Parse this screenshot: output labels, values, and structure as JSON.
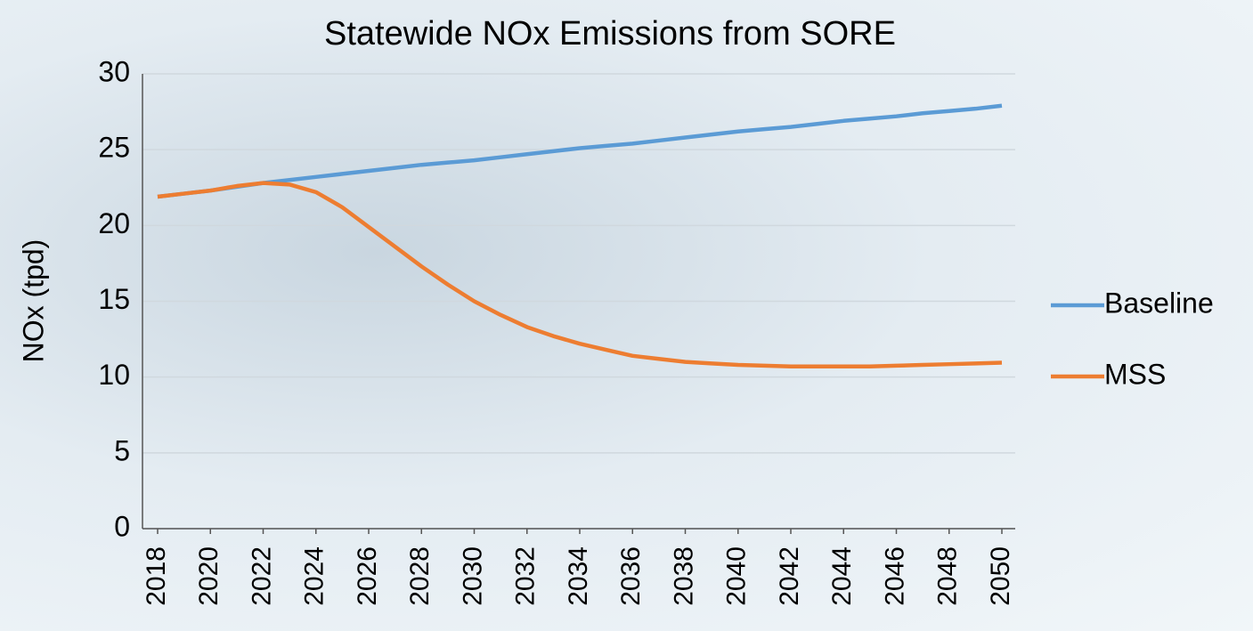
{
  "chart_data": {
    "type": "line",
    "title": "Statewide NOx Emissions from SORE",
    "ylabel": "NOx (tpd)",
    "x": [
      2018,
      2019,
      2020,
      2021,
      2022,
      2023,
      2024,
      2025,
      2026,
      2027,
      2028,
      2029,
      2030,
      2031,
      2032,
      2033,
      2034,
      2035,
      2036,
      2037,
      2038,
      2039,
      2040,
      2041,
      2042,
      2043,
      2044,
      2045,
      2046,
      2047,
      2048,
      2049,
      2050
    ],
    "series": [
      {
        "name": "Baseline",
        "color": "#5b9bd5",
        "values": [
          21.9,
          22.1,
          22.3,
          22.55,
          22.8,
          23.0,
          23.2,
          23.4,
          23.6,
          23.8,
          24.0,
          24.15,
          24.3,
          24.5,
          24.7,
          24.9,
          25.1,
          25.25,
          25.4,
          25.6,
          25.8,
          26.0,
          26.2,
          26.35,
          26.5,
          26.7,
          26.9,
          27.05,
          27.2,
          27.4,
          27.55,
          27.7,
          27.9
        ]
      },
      {
        "name": "MSS",
        "color": "#ed7d31",
        "values": [
          21.9,
          22.1,
          22.3,
          22.6,
          22.8,
          22.7,
          22.2,
          21.2,
          19.9,
          18.6,
          17.3,
          16.1,
          15.0,
          14.1,
          13.3,
          12.7,
          12.2,
          11.8,
          11.4,
          11.2,
          11.0,
          10.9,
          10.8,
          10.75,
          10.7,
          10.7,
          10.7,
          10.7,
          10.75,
          10.8,
          10.85,
          10.9,
          10.95
        ]
      }
    ],
    "xlim": [
      2018,
      2050
    ],
    "xticks": [
      2018,
      2020,
      2022,
      2024,
      2026,
      2028,
      2030,
      2032,
      2034,
      2036,
      2038,
      2040,
      2042,
      2044,
      2046,
      2048,
      2050
    ],
    "ylim": [
      0,
      30
    ],
    "yticks": [
      0,
      5,
      10,
      15,
      20,
      25,
      30
    ],
    "grid": true,
    "legend": "right"
  }
}
